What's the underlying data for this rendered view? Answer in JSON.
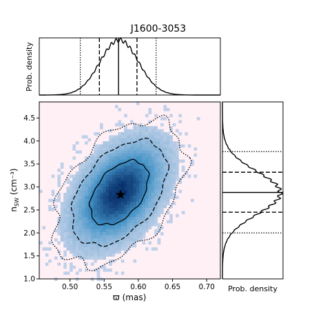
{
  "chart_data": [
    {
      "type": "heatmap",
      "title": "J1600-3053",
      "xlabel": "ϖ (mas)",
      "ylabel_main": "n",
      "ylabel_sub": "SW",
      "ylabel_unit": " (cm⁻³)",
      "xlim": [
        0.455,
        0.72
      ],
      "ylim": [
        1.0,
        4.85
      ],
      "xticks": [
        0.5,
        0.55,
        0.6,
        0.65,
        0.7
      ],
      "xtick_labels": [
        "0.50",
        "0.55",
        "0.60",
        "0.65",
        "0.70"
      ],
      "yticks": [
        1.0,
        1.5,
        2.0,
        2.5,
        3.0,
        3.5,
        4.0,
        4.5
      ],
      "ytick_labels": [
        "1.0",
        "1.5",
        "2.0",
        "2.5",
        "3.0",
        "3.5",
        "4.0",
        "4.5"
      ],
      "distribution": {
        "mean_x": 0.572,
        "mean_y": 2.87,
        "sigma_x": 0.028,
        "sigma_y": 0.46,
        "correlation": 0.45
      },
      "marker": {
        "label": "star",
        "x": 0.574,
        "y": 2.83
      },
      "contour_levels": [
        "1-sigma (solid)",
        "2-sigma (dashed)",
        "3-sigma (dotted)"
      ],
      "colors": {
        "background": "#fff0f5",
        "cmap_low": "#c6d3ea",
        "cmap_high": "#08306b"
      }
    },
    {
      "type": "line",
      "name": "top-marginal",
      "ylabel": "Prob. density",
      "xlim": [
        0.455,
        0.72
      ],
      "median": 0.571,
      "lines_1sigma": [
        0.543,
        0.598
      ],
      "lines_2sigma": [
        0.515,
        0.626
      ]
    },
    {
      "type": "line",
      "name": "right-marginal",
      "xlabel": "Prob. density",
      "ylim": [
        1.0,
        4.85
      ],
      "median": 2.88,
      "lines_1sigma": [
        2.45,
        3.32
      ],
      "lines_2sigma": [
        2.0,
        3.77
      ]
    }
  ]
}
